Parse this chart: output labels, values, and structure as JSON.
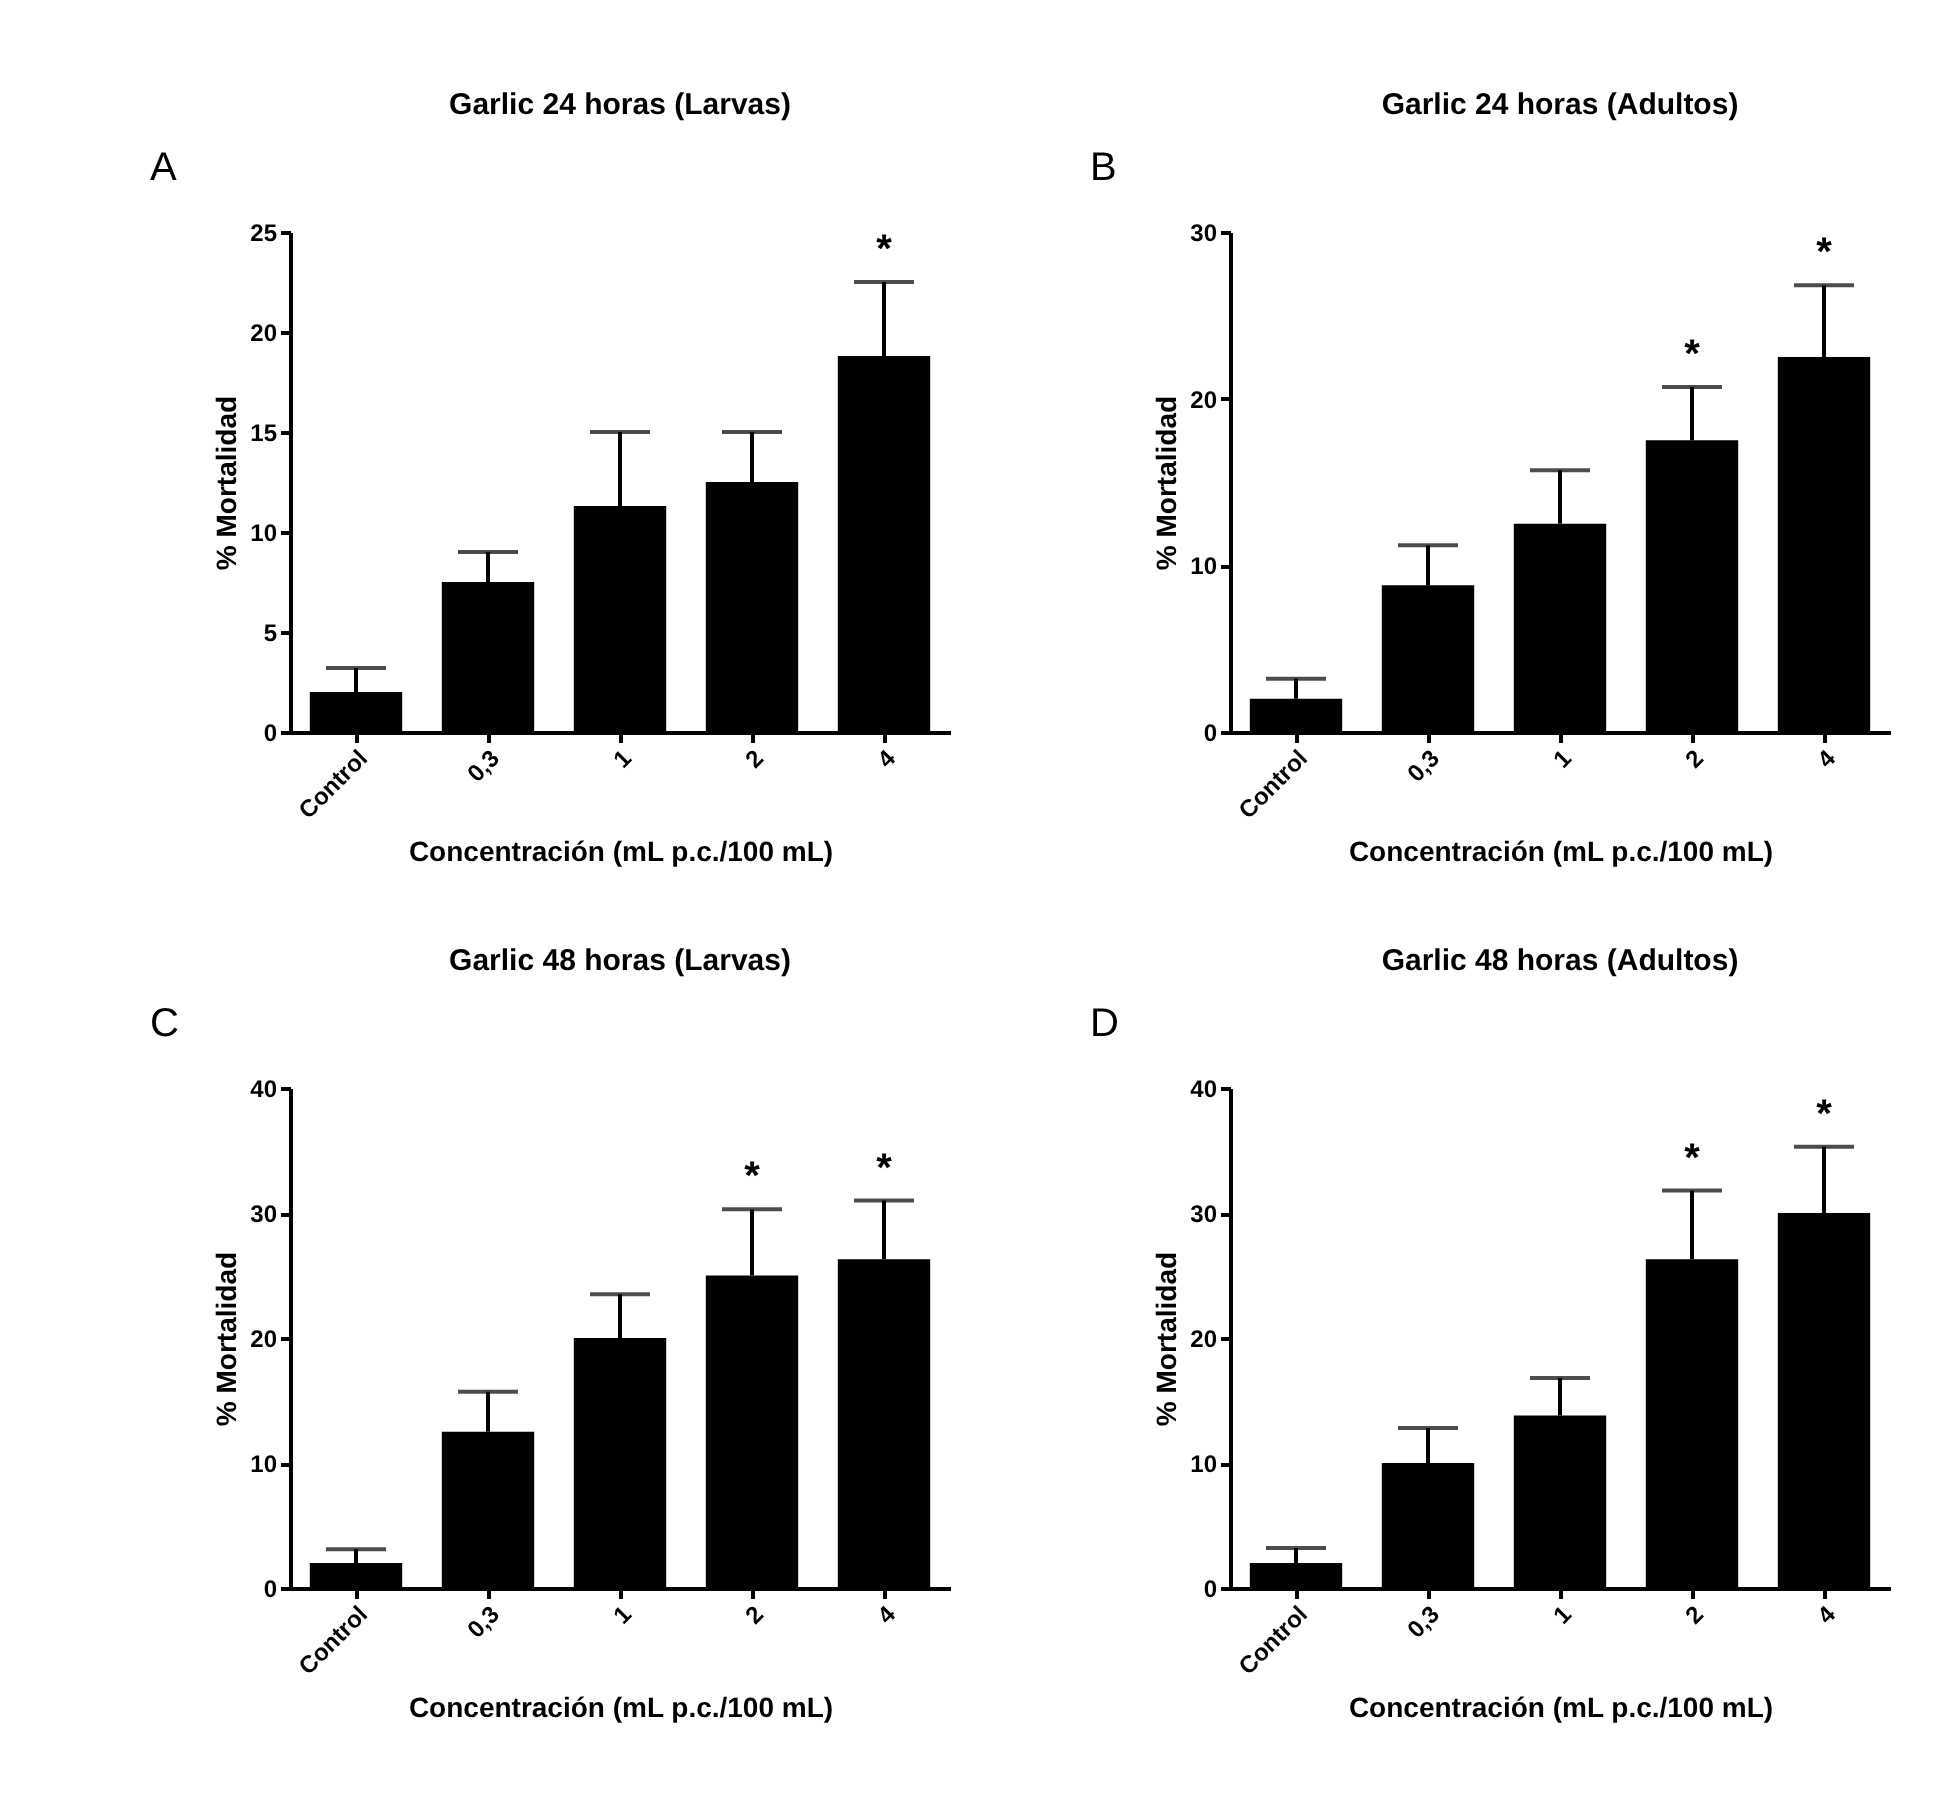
{
  "chart_data": [
    {
      "type": "bar",
      "title": "Garlic 24 horas (Larvas)",
      "xlabel": "Concentración (mL p.c./100 mL)",
      "ylabel": "% Mortalidad",
      "categories": [
        "Control",
        "0,3",
        "1",
        "2",
        "4"
      ],
      "values": [
        2,
        7.5,
        11.3,
        12.5,
        18.8
      ],
      "errors": [
        [
          2,
          3.2
        ],
        [
          7.5,
          9
        ],
        [
          11.3,
          15
        ],
        [
          12.5,
          15
        ],
        [
          18.8,
          22.5
        ]
      ],
      "value_labels": [
        null,
        null,
        null,
        null,
        "*"
      ],
      "color": "#000000",
      "ylim": [
        0,
        25
      ],
      "yticks": [
        0,
        5,
        10,
        15,
        20,
        25
      ],
      "grid": false,
      "annotations": [
        "A"
      ]
    },
    {
      "type": "bar",
      "title": "Garlic 24 horas (Adultos)",
      "xlabel": "Concentración (mL p.c./100 mL)",
      "ylabel": "% Mortalidad",
      "categories": [
        "Control",
        "0,3",
        "1",
        "2",
        "4"
      ],
      "values": [
        2,
        8.8,
        12.5,
        17.5,
        22.5
      ],
      "errors": [
        [
          2,
          3.2
        ],
        [
          8.8,
          11.2
        ],
        [
          12.5,
          15.7
        ],
        [
          17.5,
          20.7
        ],
        [
          22.5,
          26.8
        ]
      ],
      "value_labels": [
        null,
        null,
        null,
        "*",
        "*"
      ],
      "color": "#000000",
      "ylim": [
        0,
        30
      ],
      "yticks": [
        0,
        10,
        20,
        30
      ],
      "grid": false,
      "annotations": [
        "B"
      ]
    },
    {
      "type": "bar",
      "title": "Garlic 48 horas (Larvas)",
      "xlabel": "Concentración (mL p.c./100 mL)",
      "ylabel": "% Mortalidad",
      "categories": [
        "Control",
        "0,3",
        "1",
        "2",
        "4"
      ],
      "values": [
        2,
        12.5,
        20,
        25,
        26.3
      ],
      "errors": [
        [
          2,
          3.1
        ],
        [
          12.5,
          15.7
        ],
        [
          20,
          23.5
        ],
        [
          25,
          30.3
        ],
        [
          26.3,
          31
        ]
      ],
      "value_labels": [
        null,
        null,
        null,
        "*",
        "*"
      ],
      "color": "#000000",
      "ylim": [
        0,
        40
      ],
      "yticks": [
        0,
        10,
        20,
        30,
        40
      ],
      "grid": false,
      "annotations": [
        "C"
      ]
    },
    {
      "type": "bar",
      "title": "Garlic 48 horas (Adultos)",
      "xlabel": "Concentración (mL p.c./100 mL)",
      "ylabel": "% Mortalidad",
      "categories": [
        "Control",
        "0,3",
        "1",
        "2",
        "4"
      ],
      "values": [
        2,
        10,
        13.8,
        26.3,
        30
      ],
      "errors": [
        [
          2,
          3.2
        ],
        [
          10,
          12.8
        ],
        [
          13.8,
          16.8
        ],
        [
          26.3,
          31.8
        ],
        [
          30,
          35.3
        ]
      ],
      "value_labels": [
        null,
        null,
        null,
        "*",
        "*"
      ],
      "color": "#000000",
      "ylim": [
        0,
        40
      ],
      "yticks": [
        0,
        10,
        20,
        30,
        40
      ],
      "grid": false,
      "annotations": [
        "D"
      ]
    }
  ]
}
